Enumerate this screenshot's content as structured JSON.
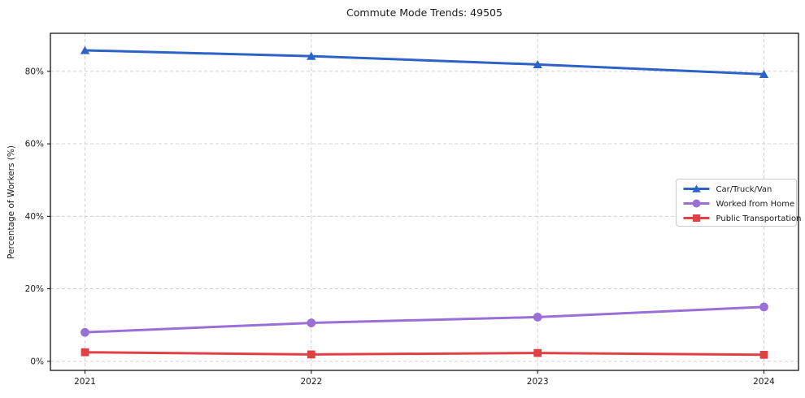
{
  "chart_data": {
    "type": "line",
    "title": "Commute Mode Trends: 49505",
    "xlabel": "",
    "ylabel": "Percentage of Workers (%)",
    "categories": [
      "2021",
      "2022",
      "2023",
      "2024"
    ],
    "series": [
      {
        "name": "Car/Truck/Van",
        "marker": "triangle",
        "color": "#2e63c6",
        "values": [
          85.8,
          84.2,
          81.9,
          79.2
        ]
      },
      {
        "name": "Worked from Home",
        "marker": "circle",
        "color": "#9a70d6",
        "values": [
          8.0,
          10.6,
          12.2,
          15.0
        ]
      },
      {
        "name": "Public Transportation",
        "marker": "square",
        "color": "#e04145",
        "values": [
          2.5,
          1.9,
          2.3,
          1.8
        ]
      }
    ],
    "yticks": [
      0,
      20,
      40,
      60,
      80
    ],
    "ytick_labels": [
      "0%",
      "20%",
      "40%",
      "60%",
      "80%"
    ],
    "ylim": [
      -2.5,
      90.5
    ],
    "grid": true,
    "grid_color": "#cccccc",
    "spine_color": "#000000",
    "legend_position": "right-middle"
  }
}
